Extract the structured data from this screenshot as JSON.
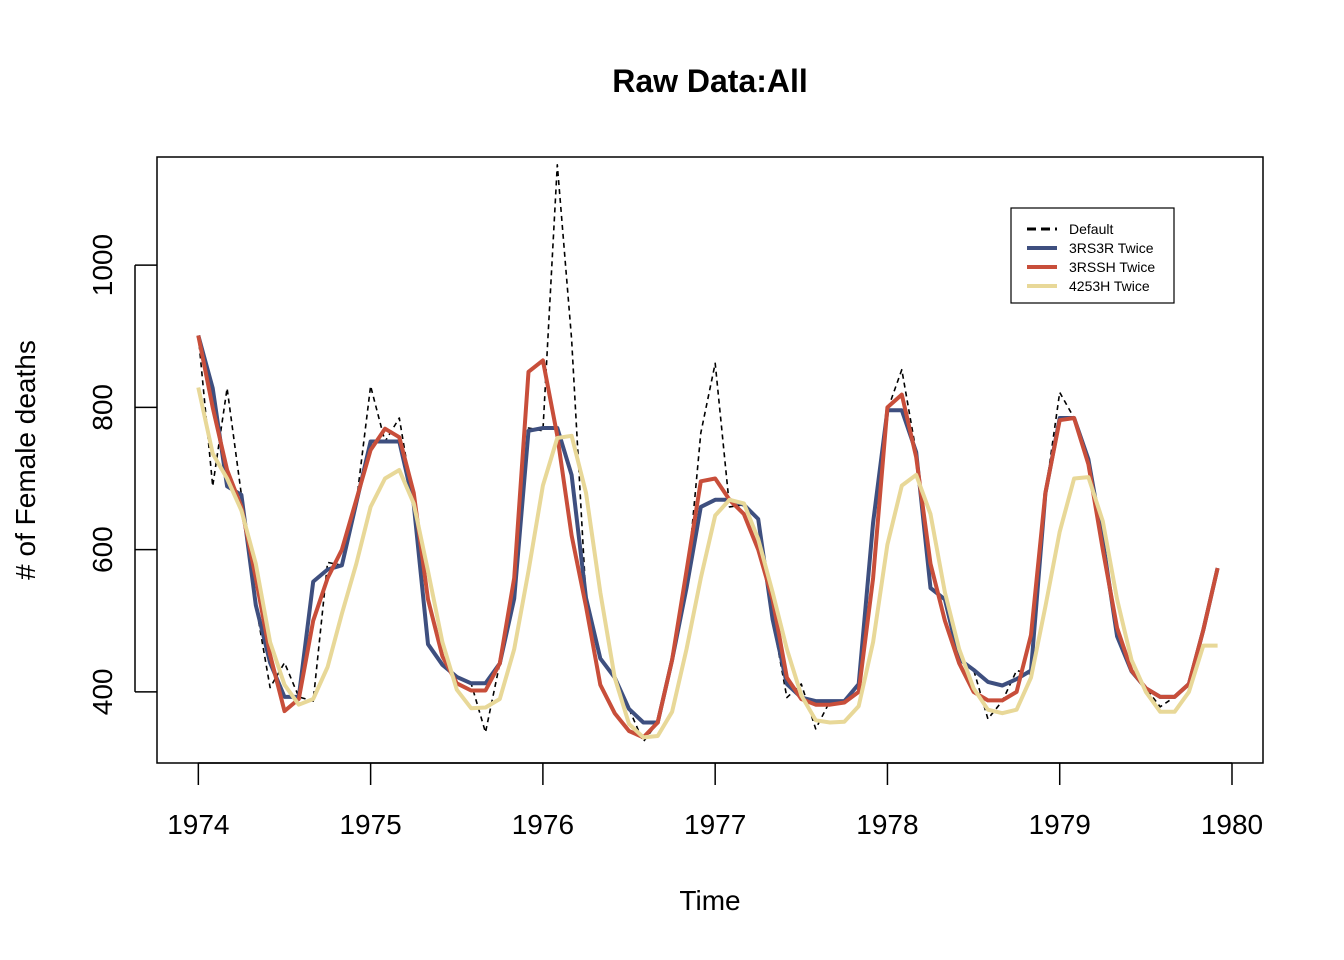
{
  "chart_data": {
    "type": "line",
    "title": "Raw Data:All",
    "xlabel": "Time",
    "ylabel": "# of Female deaths",
    "xlim": [
      1973.76,
      1980.18
    ],
    "ylim": [
      300,
      1152
    ],
    "x_ticks": [
      1974,
      1975,
      1976,
      1977,
      1978,
      1979,
      1980
    ],
    "x_tick_labels": [
      "1974",
      "1975",
      "1976",
      "1977",
      "1978",
      "1979",
      "1980"
    ],
    "y_ticks": [
      400,
      600,
      800,
      1000
    ],
    "y_tick_labels": [
      "400",
      "600",
      "800",
      "1000"
    ],
    "grid": false,
    "legend_position": "top-right",
    "x_start": 1974,
    "x_step": 0.08333333,
    "series": [
      {
        "name": "Default",
        "color": "#000000",
        "style": "dashed",
        "values": [
          901,
          689,
          827,
          677,
          522,
          406,
          441,
          393,
          387,
          582,
          578,
          666,
          830,
          752,
          785,
          664,
          467,
          438,
          421,
          412,
          343,
          440,
          531,
          771,
          767,
          1141,
          896,
          532,
          447,
          420,
          376,
          330,
          357,
          445,
          546,
          764,
          862,
          660,
          663,
          643,
          502,
          392,
          411,
          348,
          387,
          385,
          411,
          638,
          796,
          853,
          737,
          546,
          530,
          446,
          431,
          362,
          387,
          430,
          425,
          679,
          821,
          785,
          727,
          612,
          478,
          429,
          405,
          379,
          393,
          411,
          487,
          574
        ]
      },
      {
        "name": "3RS3R Twice",
        "color": "#3e4f7f",
        "style": "solid",
        "values": [
          901,
          827,
          689,
          677,
          522,
          441,
          393,
          393,
          555,
          572,
          578,
          666,
          752,
          752,
          752,
          664,
          467,
          438,
          421,
          412,
          412,
          440,
          531,
          767,
          771,
          771,
          705,
          532,
          447,
          420,
          376,
          357,
          357,
          445,
          546,
          660,
          670,
          670,
          663,
          643,
          502,
          411,
          392,
          387,
          387,
          387,
          411,
          638,
          796,
          796,
          737,
          546,
          530,
          446,
          431,
          414,
          409,
          418,
          430,
          679,
          785,
          785,
          727,
          612,
          478,
          429,
          405,
          393,
          393,
          411,
          487,
          574
        ]
      },
      {
        "name": "3RSSH Twice",
        "color": "#c84e3a",
        "style": "solid",
        "values": [
          901,
          800,
          712,
          660,
          560,
          452,
          373,
          390,
          500,
          560,
          600,
          670,
          740,
          770,
          758,
          680,
          530,
          450,
          412,
          402,
          402,
          440,
          560,
          850,
          866,
          760,
          620,
          520,
          410,
          370,
          345,
          336,
          357,
          445,
          570,
          696,
          700,
          670,
          650,
          600,
          530,
          420,
          390,
          382,
          382,
          385,
          400,
          560,
          800,
          818,
          730,
          580,
          500,
          440,
          400,
          388,
          388,
          400,
          480,
          680,
          782,
          785,
          720,
          600,
          490,
          430,
          405,
          393,
          393,
          411,
          487,
          574
        ]
      },
      {
        "name": "4253H Twice",
        "color": "#e8d898",
        "style": "solid",
        "values": [
          828,
          735,
          700,
          655,
          580,
          470,
          410,
          382,
          390,
          435,
          510,
          580,
          660,
          700,
          712,
          665,
          570,
          470,
          403,
          377,
          378,
          390,
          460,
          570,
          690,
          757,
          760,
          680,
          540,
          420,
          355,
          336,
          338,
          372,
          460,
          560,
          648,
          670,
          665,
          615,
          540,
          460,
          395,
          360,
          357,
          358,
          380,
          470,
          607,
          690,
          705,
          650,
          540,
          460,
          405,
          375,
          370,
          375,
          420,
          520,
          625,
          700,
          702,
          640,
          530,
          445,
          400,
          372,
          372,
          400,
          465,
          465
        ]
      }
    ]
  }
}
